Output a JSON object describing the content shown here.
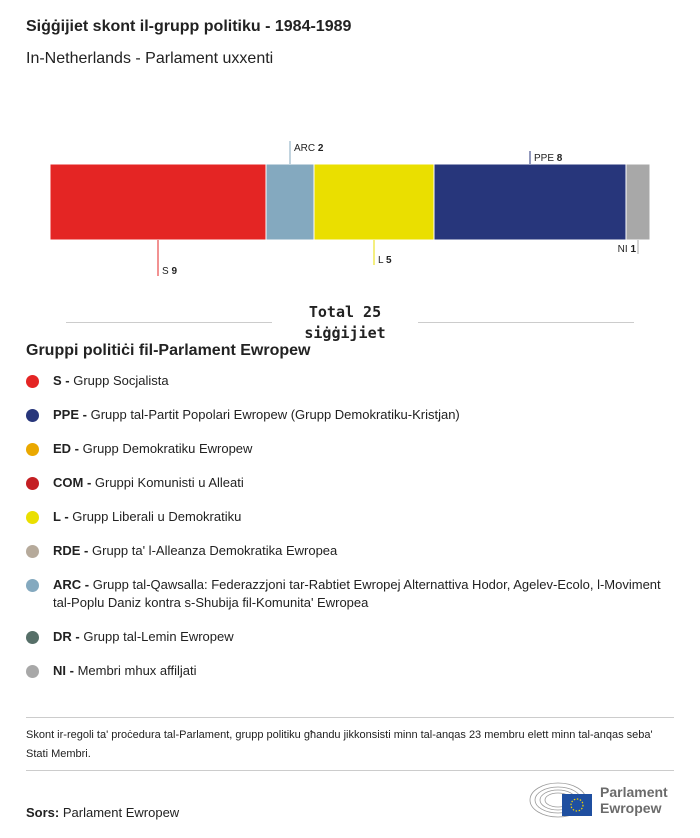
{
  "title": "Siġġijiet skont il-grupp politiku - 1984-1989",
  "subtitle": "In-Netherlands - Parlament uxxenti",
  "chart_data": {
    "type": "bar",
    "orientation": "horizontal-stacked",
    "categories": [
      "S",
      "ARC",
      "L",
      "PPE",
      "NI"
    ],
    "values": [
      9,
      2,
      5,
      8,
      1
    ],
    "colors": [
      "#e42524",
      "#84a9bf",
      "#eadf00",
      "#27367b",
      "#a8a8a8"
    ],
    "label_positions": [
      "below",
      "above",
      "below",
      "above",
      "below"
    ],
    "total_label": "Total 25",
    "total_unit": "siġġijiet"
  },
  "legend": {
    "title": "Gruppi politiċi fil-Parlament Ewropew",
    "items": [
      {
        "abbr": "S -",
        "label": "Grupp Socjalista",
        "color": "#e42524"
      },
      {
        "abbr": "PPE -",
        "label": "Grupp tal-Partit Popolari Ewropew (Grupp Demokratiku-Kristjan)",
        "color": "#27367b"
      },
      {
        "abbr": "ED -",
        "label": "Grupp Demokratiku Ewropew",
        "color": "#eaa800"
      },
      {
        "abbr": "COM -",
        "label": "Gruppi Komunisti u Alleati",
        "color": "#c41f23"
      },
      {
        "abbr": "L -",
        "label": "Grupp Liberali u Demokratiku",
        "color": "#eadf00"
      },
      {
        "abbr": "RDE -",
        "label": "Grupp ta' l-Alleanza Demokratika Ewropea",
        "color": "#b6aa9b"
      },
      {
        "abbr": "ARC -",
        "label": "Grupp tal-Qawsalla: Federazzjoni tar-Rabtiet Ewropej Alternattiva Hodor, Agelev-Ecolo, l-Moviment tal-Poplu Daniz kontra s-Shubija fil-Komunita' Ewropea",
        "color": "#84a9bf"
      },
      {
        "abbr": "DR -",
        "label": "Grupp tal-Lemin Ewropew",
        "color": "#566f68"
      },
      {
        "abbr": "NI -",
        "label": "Membri mhux affiljati",
        "color": "#a8a8a8"
      }
    ]
  },
  "note": "Skont ir-regoli ta' proċedura tal-Parlament, grupp politiku għandu jikkonsisti minn tal-anqas 23 membru elett minn tal-anqas seba' Stati Membri.",
  "source": {
    "label": "Sors:",
    "value": "Parlament Ewropew"
  },
  "logo": {
    "line1": "Parlament",
    "line2": "Ewropew"
  }
}
